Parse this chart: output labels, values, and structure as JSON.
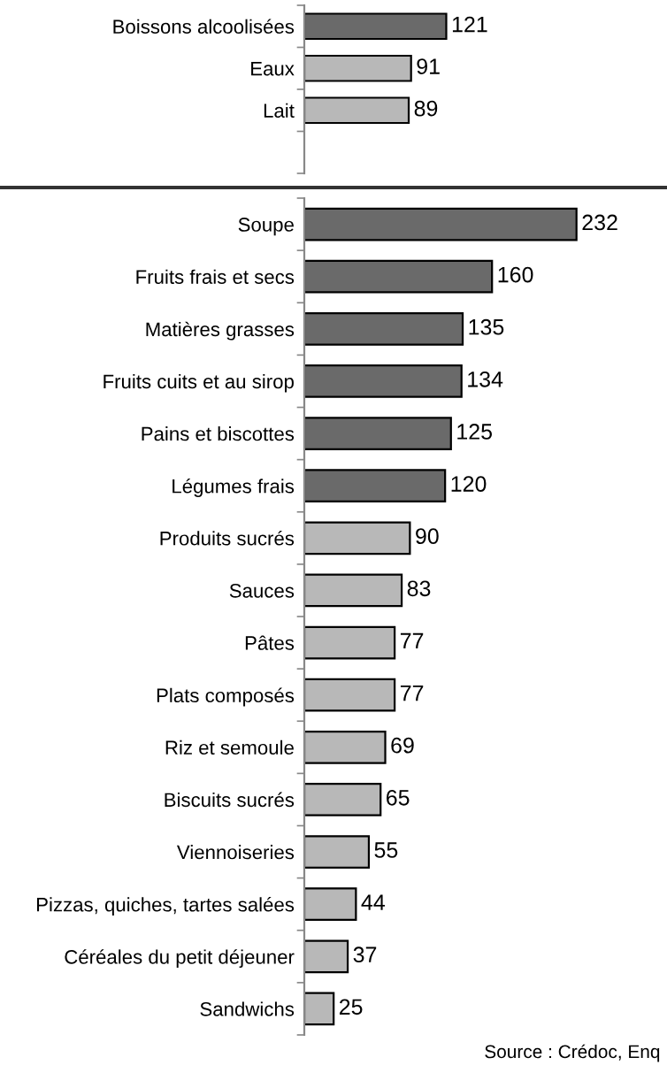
{
  "chart_data": [
    {
      "type": "bar",
      "orientation": "horizontal",
      "data_labels": true,
      "grid": false,
      "categories": [
        "Boissons alcoolisées",
        "Eaux",
        "Lait"
      ],
      "values": [
        121,
        91,
        89
      ],
      "colors": [
        "#6a6a6a",
        "#b8b8b8",
        "#b8b8b8"
      ]
    },
    {
      "type": "bar",
      "orientation": "horizontal",
      "data_labels": true,
      "grid": false,
      "categories": [
        "Soupe",
        "Fruits frais et secs",
        "Matières grasses",
        "Fruits cuits et au sirop",
        "Pains et biscottes",
        "Légumes frais",
        "Produits sucrés",
        "Sauces",
        "Pâtes",
        "Plats composés",
        "Riz et semoule",
        "Biscuits sucrés",
        "Viennoiseries",
        "Pizzas, quiches, tartes salées",
        "Céréales du petit déjeuner",
        "Sandwichs"
      ],
      "values": [
        232,
        160,
        135,
        134,
        125,
        120,
        90,
        83,
        77,
        77,
        69,
        65,
        55,
        44,
        37,
        25
      ],
      "colors": [
        "#6a6a6a",
        "#6a6a6a",
        "#6a6a6a",
        "#6a6a6a",
        "#6a6a6a",
        "#6a6a6a",
        "#b8b8b8",
        "#b8b8b8",
        "#b8b8b8",
        "#b8b8b8",
        "#b8b8b8",
        "#b8b8b8",
        "#b8b8b8",
        "#b8b8b8",
        "#b8b8b8",
        "#b8b8b8"
      ],
      "annotations": [
        "Source : Crédoc, Enq"
      ]
    }
  ]
}
